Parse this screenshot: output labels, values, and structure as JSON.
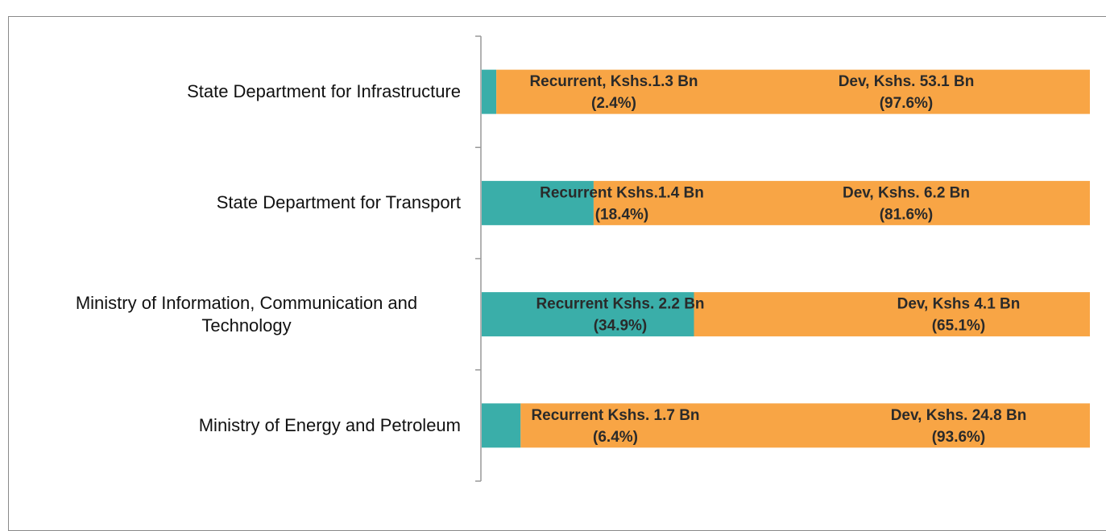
{
  "chart_data": {
    "type": "stacked_barh",
    "categories": [
      "State Department for Infrastructure",
      "State Department for Transport",
      "Ministry of Information, Communication and Technology",
      "Ministry of Energy and Petroleum"
    ],
    "series": [
      {
        "name": "Recurrent",
        "color": "#3aaea9",
        "values": [
          2.4,
          18.4,
          34.9,
          6.4
        ],
        "value_labels": [
          [
            "Recurrent, Kshs.1.3 Bn",
            "(2.4%)"
          ],
          [
            "Recurrent  Kshs.1.4 Bn",
            "(18.4%)"
          ],
          [
            "Recurrent Kshs. 2.2 Bn",
            "(34.9%)"
          ],
          [
            "Recurrent Kshs. 1.7 Bn",
            "(6.4%)"
          ]
        ]
      },
      {
        "name": "Dev",
        "color": "#f8a545",
        "values": [
          97.6,
          81.6,
          65.1,
          93.6
        ],
        "value_labels": [
          [
            "Dev, Kshs. 53.1 Bn",
            "(97.6%)"
          ],
          [
            "Dev, Kshs. 6.2 Bn",
            "(81.6%)"
          ],
          [
            "Dev, Kshs 4.1 Bn",
            "(65.1%)"
          ],
          [
            "Dev, Kshs. 24.8 Bn",
            "(93.6%)"
          ]
        ]
      }
    ]
  }
}
